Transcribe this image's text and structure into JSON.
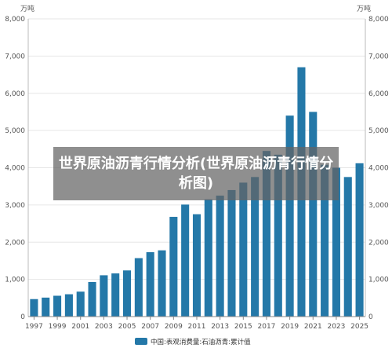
{
  "overlay": {
    "title": "世界原油沥青行情分析(世界原油沥青行情分析图)"
  },
  "chart_data": {
    "type": "bar",
    "y_unit_left": "万吨",
    "y_unit_right": "万吨",
    "ylim": [
      0,
      8000
    ],
    "yticks": [
      "0",
      "1,000",
      "2,000",
      "3,000",
      "4,000",
      "5,000",
      "6,000",
      "7,000",
      "8,000"
    ],
    "xtick_labels": [
      "1997",
      "1999",
      "2001",
      "2003",
      "2005",
      "2007",
      "2009",
      "2011",
      "2013",
      "2015",
      "2017",
      "2019",
      "2021",
      "2023",
      "2025"
    ],
    "grid": true,
    "legend_position": "bottom",
    "color": "#2478a8",
    "series": [
      {
        "name": "中国:表观消费量:石油沥青:累计值",
        "x": [
          "1997",
          "1998",
          "1999",
          "2000",
          "2001",
          "2002",
          "2003",
          "2004",
          "2005",
          "2006",
          "2007",
          "2008",
          "2009",
          "2010",
          "2011",
          "2012",
          "2013",
          "2014",
          "2015",
          "2016",
          "2017",
          "2018",
          "2019",
          "2020",
          "2021",
          "2022",
          "2023",
          "2024",
          "2025"
        ],
        "values": [
          470,
          510,
          560,
          600,
          670,
          930,
          1110,
          1160,
          1240,
          1570,
          1730,
          1780,
          2680,
          3010,
          2750,
          3150,
          3250,
          3400,
          3600,
          3750,
          4450,
          4350,
          5400,
          6700,
          5500,
          4080,
          4000,
          3750,
          4120
        ]
      }
    ]
  }
}
